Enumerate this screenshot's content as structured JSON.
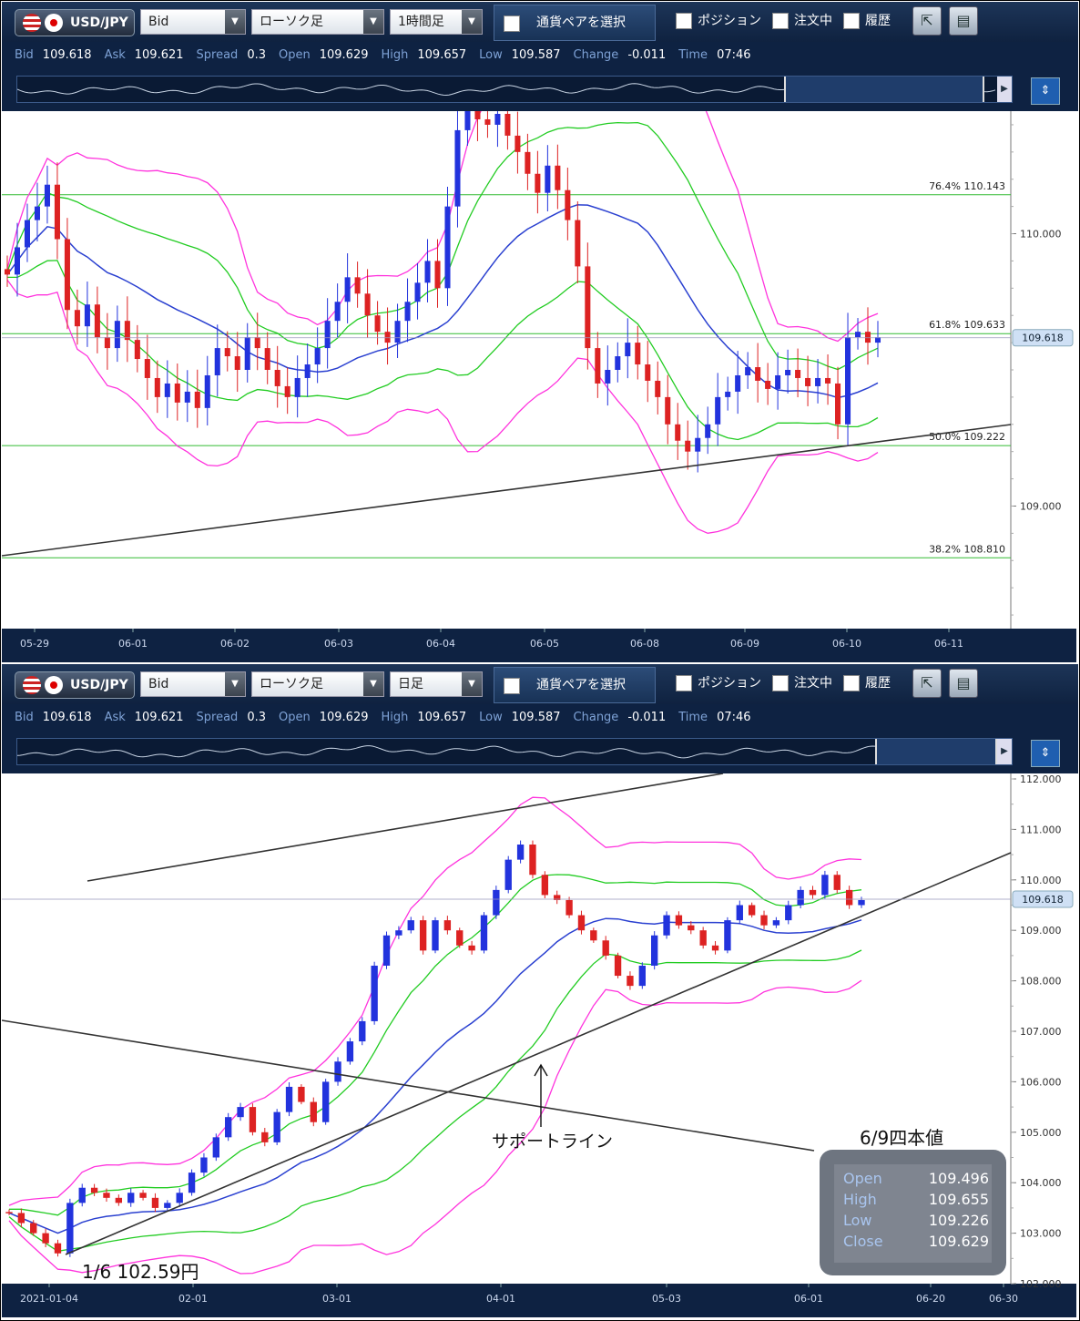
{
  "panels": [
    {
      "id": "hourly",
      "toolbar": {
        "pair": "USD/JPY",
        "price_type": "Bid",
        "chart_type": "ローソク足",
        "timeframe": "1時間足",
        "pair_button": "通貨ペアを選択",
        "checks": [
          "ポジション",
          "注文中",
          "履歴"
        ]
      },
      "quote": {
        "labels": [
          "Bid",
          "Ask",
          "Spread",
          "Open",
          "High",
          "Low",
          "Change",
          "Time"
        ],
        "values": [
          "109.618",
          "109.621",
          "0.3",
          "109.629",
          "109.657",
          "109.587",
          "-0.011",
          "07:46"
        ]
      }
    },
    {
      "id": "daily",
      "toolbar": {
        "pair": "USD/JPY",
        "price_type": "Bid",
        "chart_type": "ローソク足",
        "timeframe": "日足",
        "pair_button": "通貨ペアを選択",
        "checks": [
          "ポジション",
          "注文中",
          "履歴"
        ]
      },
      "quote": {
        "labels": [
          "Bid",
          "Ask",
          "Spread",
          "Open",
          "High",
          "Low",
          "Change",
          "Time"
        ],
        "values": [
          "109.618",
          "109.621",
          "0.3",
          "109.629",
          "109.657",
          "109.587",
          "-0.011",
          "07:46"
        ]
      }
    }
  ],
  "chart_data": [
    {
      "type": "candlestick",
      "timeframe": "1時間足",
      "x_ticks": [
        "05-29",
        "06-01",
        "06-02",
        "06-03",
        "06-04",
        "06-05",
        "06-08",
        "06-09",
        "06-10",
        "06-11"
      ],
      "y_ticks": [
        "110.000",
        "109.000"
      ],
      "ylim": [
        108.55,
        110.45
      ],
      "current_price": "109.618",
      "fib_levels": [
        {
          "label": "76.4%",
          "value": "110.143"
        },
        {
          "label": "61.8%",
          "value": "109.633"
        },
        {
          "label": "50.0%",
          "value": "109.222"
        },
        {
          "label": "38.2%",
          "value": "108.810"
        }
      ],
      "indicators": [
        "moving average (blue)",
        "Bollinger ±1σ (green)",
        "Bollinger ±2σ (magenta)"
      ],
      "trendline": {
        "from": [
          0,
          108.8
        ],
        "to": [
          1,
          109.31
        ]
      },
      "closes": [
        109.85,
        109.95,
        110.05,
        110.1,
        110.18,
        109.98,
        109.72,
        109.66,
        109.74,
        109.62,
        109.58,
        109.68,
        109.61,
        109.54,
        109.47,
        109.4,
        109.45,
        109.38,
        109.42,
        109.36,
        109.48,
        109.58,
        109.55,
        109.5,
        109.62,
        109.58,
        109.5,
        109.44,
        109.4,
        109.47,
        109.52,
        109.58,
        109.68,
        109.75,
        109.84,
        109.78,
        109.7,
        109.64,
        109.6,
        109.68,
        109.75,
        109.82,
        109.9,
        109.8,
        110.1,
        110.38,
        110.46,
        110.42,
        110.4,
        110.44,
        110.36,
        110.3,
        110.22,
        110.15,
        110.25,
        110.16,
        110.05,
        109.88,
        109.58,
        109.45,
        109.5,
        109.55,
        109.6,
        109.52,
        109.46,
        109.4,
        109.3,
        109.24,
        109.2,
        109.25,
        109.3,
        109.4,
        109.42,
        109.48,
        109.51,
        109.46,
        109.43,
        109.48,
        109.5,
        109.47,
        109.44,
        109.47,
        109.45,
        109.3,
        109.62,
        109.64,
        109.6,
        109.62
      ]
    },
    {
      "type": "candlestick",
      "timeframe": "日足",
      "x_ticks": [
        "2021-01-04",
        "02-01",
        "03-01",
        "04-01",
        "05-03",
        "06-01",
        "06-20",
        "06-30"
      ],
      "y_ticks": [
        "112.000",
        "111.000",
        "110.000",
        "109.000",
        "108.000",
        "107.000",
        "106.000",
        "105.000",
        "104.000",
        "103.000",
        "102.000"
      ],
      "ylim": [
        102.0,
        112.0
      ],
      "current_price": "109.618",
      "indicators": [
        "moving average (blue)",
        "Bollinger ±1σ (green)",
        "Bollinger ±2σ (magenta)"
      ],
      "closes": [
        103.4,
        103.2,
        103.0,
        102.8,
        102.6,
        103.6,
        103.9,
        103.8,
        103.7,
        103.6,
        103.8,
        103.7,
        103.5,
        103.6,
        103.8,
        104.2,
        104.5,
        104.9,
        105.3,
        105.5,
        105.0,
        104.8,
        105.4,
        105.9,
        105.6,
        105.2,
        106.0,
        106.4,
        106.8,
        107.2,
        108.3,
        108.9,
        109.0,
        109.2,
        108.6,
        109.2,
        109.0,
        108.7,
        108.6,
        109.3,
        109.8,
        110.4,
        110.7,
        110.1,
        109.7,
        109.6,
        109.3,
        109.0,
        108.8,
        108.5,
        108.1,
        107.9,
        108.3,
        108.9,
        109.3,
        109.1,
        109.0,
        108.7,
        108.6,
        109.2,
        109.5,
        109.3,
        109.1,
        109.2,
        109.5,
        109.8,
        109.7,
        110.1,
        109.8,
        109.5,
        109.6
      ]
    }
  ],
  "annotations": {
    "support_label": "サポートライン",
    "low_label": "1/6  102.59円",
    "ohlc_title": "6/9四本値",
    "ohlc": [
      {
        "k": "Open",
        "v": "109.496"
      },
      {
        "k": "High",
        "v": "109.655"
      },
      {
        "k": "Low",
        "v": "109.226"
      },
      {
        "k": "Close",
        "v": "109.629"
      }
    ]
  },
  "colors": {
    "up": "#2233dd",
    "down": "#dd2222",
    "ma": "#2a40d0",
    "bb1": "#22cc22",
    "bb2": "#ff33dd",
    "fib": "#33bb33",
    "axis_bg": "#0e2242"
  }
}
